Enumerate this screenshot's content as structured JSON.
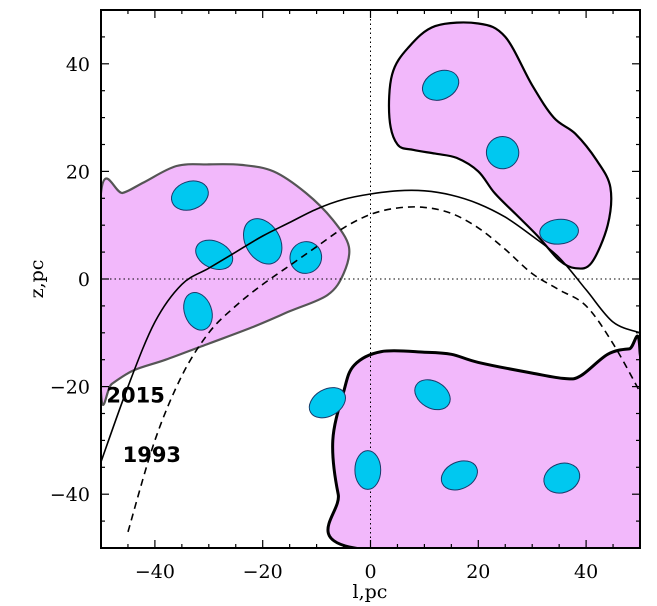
{
  "chart_data": {
    "type": "scatter",
    "xlabel": "l,pc",
    "ylabel": "z,pc",
    "xlim": [
      -50,
      50
    ],
    "ylim": [
      -50,
      50
    ],
    "x_ticks": [
      -40,
      -20,
      0,
      20,
      40
    ],
    "y_ticks": [
      -40,
      -20,
      0,
      20,
      40
    ],
    "x_tick_labels": [
      "−40",
      "−20",
      "0",
      "20",
      "40"
    ],
    "y_tick_labels": [
      "−40",
      "−20",
      "0",
      "20",
      "40"
    ],
    "zero_lines": "dotted",
    "curves": [
      {
        "name": "2015",
        "style": "solid",
        "label_at": [
          -49,
          -23
        ],
        "points": [
          [
            -50,
            -34
          ],
          [
            -45,
            -20
          ],
          [
            -40,
            -8
          ],
          [
            -35,
            -1
          ],
          [
            -30,
            2
          ],
          [
            -25,
            5
          ],
          [
            -20,
            8
          ],
          [
            -15,
            10.5
          ],
          [
            -10,
            13
          ],
          [
            -5,
            14.8
          ],
          [
            0,
            15.8
          ],
          [
            5,
            16.4
          ],
          [
            10,
            16.4
          ],
          [
            15,
            15.6
          ],
          [
            20,
            14
          ],
          [
            25,
            11.5
          ],
          [
            30,
            8
          ],
          [
            35,
            4
          ],
          [
            40,
            -2
          ],
          [
            45,
            -8
          ],
          [
            50,
            -10
          ]
        ]
      },
      {
        "name": "1993",
        "style": "dashed",
        "label_at": [
          -46,
          -34
        ],
        "points": [
          [
            -45,
            -47
          ],
          [
            -40,
            -30
          ],
          [
            -35,
            -18
          ],
          [
            -30,
            -10
          ],
          [
            -25,
            -5
          ],
          [
            -20,
            -1
          ],
          [
            -15,
            2.5
          ],
          [
            -10,
            6
          ],
          [
            -5,
            9.5
          ],
          [
            0,
            12
          ],
          [
            5,
            13.2
          ],
          [
            10,
            13.3
          ],
          [
            15,
            12.2
          ],
          [
            20,
            9.5
          ],
          [
            25,
            5.5
          ],
          [
            30,
            1
          ],
          [
            35,
            -2
          ],
          [
            40,
            -5
          ],
          [
            45,
            -12
          ],
          [
            50,
            -21
          ]
        ]
      }
    ],
    "regions": [
      {
        "fill": "#f2b8fb",
        "stroke": "#555555",
        "points": [
          [
            -50,
            16
          ],
          [
            -46,
            16
          ],
          [
            -42,
            18
          ],
          [
            -36,
            21
          ],
          [
            -30,
            21.3
          ],
          [
            -24,
            21.2
          ],
          [
            -18,
            20
          ],
          [
            -12,
            16
          ],
          [
            -7,
            11
          ],
          [
            -4,
            6
          ],
          [
            -5,
            1
          ],
          [
            -8,
            -3
          ],
          [
            -15,
            -6
          ],
          [
            -22,
            -9
          ],
          [
            -30,
            -12
          ],
          [
            -38,
            -15
          ],
          [
            -44,
            -17
          ],
          [
            -48,
            -19.5
          ],
          [
            -50,
            -21
          ]
        ]
      },
      {
        "fill": "#f2b8fb",
        "stroke": "#000000",
        "points": [
          [
            12,
            47
          ],
          [
            20,
            47.5
          ],
          [
            25,
            45
          ],
          [
            30,
            36
          ],
          [
            34,
            30
          ],
          [
            38,
            27
          ],
          [
            42,
            22
          ],
          [
            44.5,
            17
          ],
          [
            44,
            10
          ],
          [
            41,
            3
          ],
          [
            38,
            2
          ],
          [
            35,
            3.5
          ],
          [
            31,
            8
          ],
          [
            27,
            12
          ],
          [
            23,
            16
          ],
          [
            20,
            20
          ],
          [
            16,
            22.5
          ],
          [
            12,
            23.3
          ],
          [
            8,
            24
          ],
          [
            5,
            25
          ],
          [
            3.5,
            30
          ],
          [
            4,
            38
          ],
          [
            7,
            43
          ]
        ]
      },
      {
        "fill": "#f2b8fb",
        "stroke": "#000000",
        "points": [
          [
            -5,
            -21
          ],
          [
            -3,
            -16
          ],
          [
            2,
            -13.5
          ],
          [
            10,
            -13.6
          ],
          [
            15,
            -14
          ],
          [
            20,
            -15.5
          ],
          [
            30,
            -17.5
          ],
          [
            36,
            -18.5
          ],
          [
            39,
            -18
          ],
          [
            44,
            -14
          ],
          [
            48,
            -13
          ],
          [
            50,
            -13.5
          ],
          [
            50,
            -50
          ],
          [
            -3,
            -50
          ],
          [
            -6,
            -40
          ],
          [
            -7,
            -30
          ]
        ]
      }
    ],
    "clumps": [
      {
        "x": -33.5,
        "y": 15.5,
        "rx": 3.5,
        "ry": 2.6,
        "angle": -20
      },
      {
        "x": -29,
        "y": 4.5,
        "rx": 3.6,
        "ry": 2.5,
        "angle": 25
      },
      {
        "x": -20,
        "y": 7,
        "rx": 3.2,
        "ry": 4.5,
        "angle": -30
      },
      {
        "x": -12,
        "y": 4,
        "rx": 2.9,
        "ry": 3.0,
        "angle": 40
      },
      {
        "x": -32,
        "y": -6,
        "rx": 2.5,
        "ry": 3.6,
        "angle": -20
      },
      {
        "x": 13,
        "y": 36,
        "rx": 3.5,
        "ry": 2.6,
        "angle": -25
      },
      {
        "x": 24.5,
        "y": 23.5,
        "rx": 3.0,
        "ry": 3.0,
        "angle": 35
      },
      {
        "x": 35,
        "y": 8.8,
        "rx": 3.6,
        "ry": 2.3,
        "angle": -5
      },
      {
        "x": -8,
        "y": -23,
        "rx": 3.6,
        "ry": 2.5,
        "angle": -30
      },
      {
        "x": 11.5,
        "y": -21.5,
        "rx": 3.5,
        "ry": 2.5,
        "angle": 30
      },
      {
        "x": -0.5,
        "y": -35.5,
        "rx": 2.4,
        "ry": 3.6,
        "angle": 0
      },
      {
        "x": 16.5,
        "y": -36.5,
        "rx": 3.5,
        "ry": 2.5,
        "angle": -25
      },
      {
        "x": 35.5,
        "y": -37,
        "rx": 3.4,
        "ry": 2.7,
        "angle": -20
      }
    ],
    "clump_fill": "#00c8f0",
    "clump_stroke": "#1a3a6a"
  }
}
